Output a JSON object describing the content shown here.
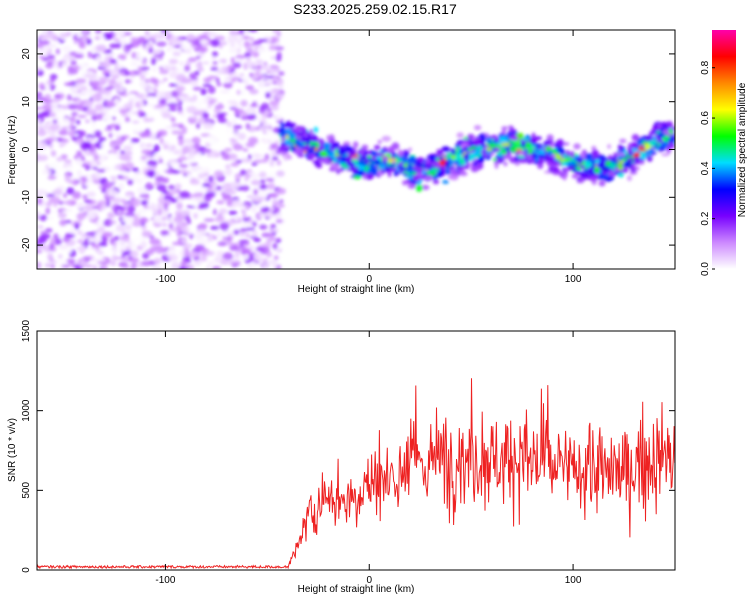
{
  "figure_title": "S233.2025.259.02.15.R17",
  "chart_data": [
    {
      "type": "heatmap",
      "xlabel": "Height of straight line (km)",
      "ylabel": "Frequency (Hz)",
      "xlim": [
        -163,
        150
      ],
      "ylim": [
        -25,
        25
      ],
      "x_ticks": [
        -100,
        0,
        100
      ],
      "y_ticks": [
        -20,
        -10,
        0,
        10,
        20
      ],
      "noise_region_x": [
        -163,
        -43
      ],
      "signal_start_x": -43,
      "ridge_center_freq": {
        "x": [
          -43,
          -35,
          -20,
          -5,
          10,
          25,
          40,
          55,
          70,
          85,
          100,
          115,
          130,
          145
        ],
        "y": [
          3,
          2,
          -1,
          -3,
          -2,
          -5,
          -2,
          0,
          1,
          0,
          -3,
          -4,
          -1,
          3
        ]
      },
      "colorbar": {
        "label": "Normalized spectral amplitude",
        "range": [
          0,
          0.95
        ],
        "ticks": [
          0.0,
          0.2,
          0.4,
          0.6,
          0.8
        ],
        "colors": [
          "#ffffff",
          "#cc88ff",
          "#7700ff",
          "#0000ff",
          "#00ddff",
          "#00ff00",
          "#ffff00",
          "#ff8800",
          "#ff0000",
          "#ff00aa"
        ]
      }
    },
    {
      "type": "line",
      "xlabel": "Height of straight line (km)",
      "ylabel": "SNR (10 * v/v)",
      "xlim": [
        -163,
        150
      ],
      "ylim": [
        0,
        1500
      ],
      "x_ticks": [
        -100,
        0,
        100
      ],
      "y_ticks": [
        0,
        500,
        1000,
        1500
      ],
      "color": "#ee2222",
      "series": [
        {
          "name": "SNR",
          "x": [
            -163,
            -140,
            -120,
            -100,
            -80,
            -60,
            -45,
            -40,
            -35,
            -30,
            -25,
            -20,
            -15,
            -10,
            -5,
            0,
            5,
            10,
            15,
            20,
            25,
            30,
            40,
            50,
            60,
            70,
            80,
            90,
            100,
            110,
            120,
            130,
            140,
            150
          ],
          "y": [
            20,
            20,
            20,
            20,
            20,
            20,
            20,
            20,
            140,
            330,
            420,
            460,
            440,
            470,
            500,
            520,
            560,
            580,
            620,
            650,
            680,
            690,
            700,
            710,
            700,
            700,
            690,
            650,
            620,
            620,
            610,
            640,
            700,
            700
          ]
        }
      ]
    }
  ]
}
